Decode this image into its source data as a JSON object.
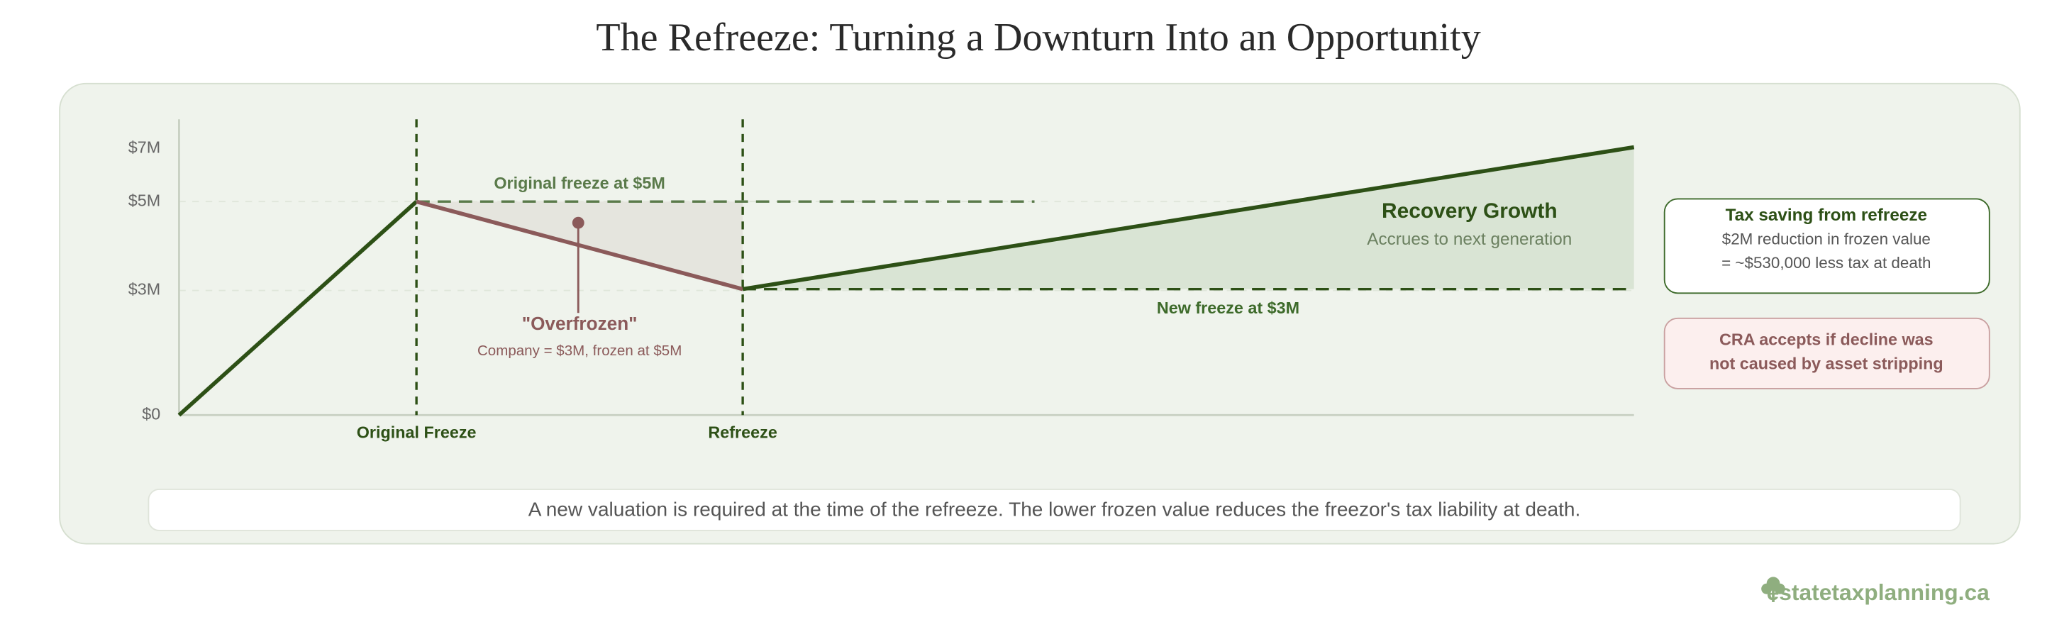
{
  "header": {
    "title": "The Refreeze: Turning a Downturn Into an Opportunity"
  },
  "axis": {
    "y_labels": [
      "$7M",
      "$5M",
      "$3M",
      "$0"
    ],
    "x_labels": [
      "Original Freeze",
      "Refreeze"
    ]
  },
  "annotations": {
    "original_freeze": "Original freeze at $5M",
    "new_freeze": "New freeze at $3M",
    "overfrozen_title": "\"Overfrozen\"",
    "overfrozen_note": "Company = $3M, frozen at $5M",
    "recovery_title": "Recovery Growth",
    "recovery_note": "Accrues to next generation"
  },
  "boxes": {
    "tax_saving": {
      "title": "Tax saving from refreeze",
      "lines": [
        "$2M reduction in frozen value",
        "= ~$530,000 less tax at death"
      ]
    },
    "cra": {
      "lines": [
        "CRA accepts if decline was",
        "not caused by asset stripping"
      ]
    }
  },
  "footer": {
    "note": "A new valuation is required at the time of the refreeze. The lower frozen value reduces the freezor's tax liability at death."
  },
  "brand": {
    "name": "estatetaxplanning.ca"
  }
}
